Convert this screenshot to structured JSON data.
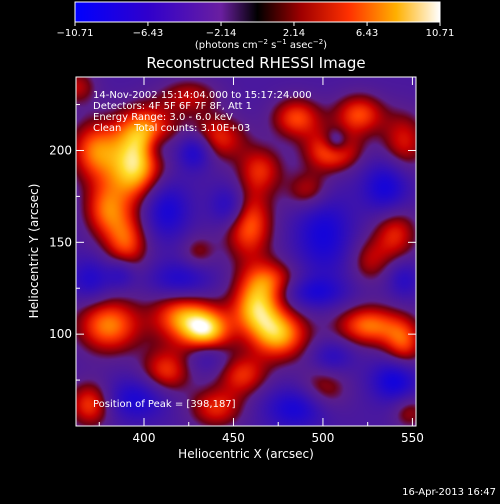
{
  "chart_data": {
    "type": "heatmap",
    "title": "Reconstructed RHESSI Image",
    "xlabel": "Heliocentric X (arcsec)",
    "ylabel": "Heliocentric Y (arcsec)",
    "xlim": [
      362,
      552
    ],
    "ylim": [
      50,
      240
    ],
    "x_ticks": [
      400,
      450,
      500,
      550
    ],
    "y_ticks": [
      100,
      150,
      200
    ],
    "colorbar": {
      "range": [
        -10.71,
        10.71
      ],
      "tick_values": [
        -10.71,
        -6.43,
        -2.14,
        2.14,
        6.43,
        10.71
      ],
      "tick_labels": [
        "−10.71",
        "−6.43",
        "−2.14",
        "2.14",
        "6.43",
        "10.71"
      ],
      "units_prefix": "(photons cm",
      "units_exp1": "−2",
      "units_mid": " s",
      "units_exp2": "−1",
      "units_mid2": " asec",
      "units_exp3": "−2",
      "units_suffix": ")"
    },
    "info_lines": [
      "14-Nov-2002 15:14:04.000 to 15:17:24.000",
      "Detectors: 4F 5F 6F 7F 8F, Att 1",
      "Energy Range: 3.0 - 6.0 keV",
      "Clean    Total counts: 3.10E+03"
    ],
    "peak_text": "Position of Peak = [398,187]",
    "peak": [
      398,
      187
    ],
    "blobs": [
      {
        "x": 395,
        "y": 190,
        "amp": 10.7,
        "sx": 11,
        "sy": 13
      },
      {
        "x": 372,
        "y": 200,
        "amp": 8.0,
        "sx": 10,
        "sy": 12
      },
      {
        "x": 400,
        "y": 212,
        "amp": 8.0,
        "sx": 12,
        "sy": 10
      },
      {
        "x": 440,
        "y": 207,
        "amp": 7.0,
        "sx": 12,
        "sy": 9
      },
      {
        "x": 465,
        "y": 190,
        "amp": 6.0,
        "sx": 9,
        "sy": 9
      },
      {
        "x": 378,
        "y": 168,
        "amp": 7.0,
        "sx": 9,
        "sy": 11
      },
      {
        "x": 390,
        "y": 150,
        "amp": 7.5,
        "sx": 9,
        "sy": 12
      },
      {
        "x": 458,
        "y": 160,
        "amp": 8.5,
        "sx": 10,
        "sy": 14
      },
      {
        "x": 505,
        "y": 200,
        "amp": 9.0,
        "sx": 11,
        "sy": 8
      },
      {
        "x": 485,
        "y": 218,
        "amp": 7.5,
        "sx": 10,
        "sy": 8
      },
      {
        "x": 520,
        "y": 220,
        "amp": 7.5,
        "sx": 10,
        "sy": 8
      },
      {
        "x": 545,
        "y": 205,
        "amp": 6.0,
        "sx": 9,
        "sy": 12
      },
      {
        "x": 492,
        "y": 178,
        "amp": 6.0,
        "sx": 9,
        "sy": 8
      },
      {
        "x": 470,
        "y": 130,
        "amp": 6.5,
        "sx": 12,
        "sy": 8
      },
      {
        "x": 540,
        "y": 155,
        "amp": 6.5,
        "sx": 9,
        "sy": 11
      },
      {
        "x": 525,
        "y": 140,
        "amp": 4.5,
        "sx": 8,
        "sy": 9
      },
      {
        "x": 380,
        "y": 105,
        "amp": 9.0,
        "sx": 13,
        "sy": 11
      },
      {
        "x": 420,
        "y": 110,
        "amp": 8.0,
        "sx": 12,
        "sy": 10
      },
      {
        "x": 435,
        "y": 102,
        "amp": 10.0,
        "sx": 10,
        "sy": 9
      },
      {
        "x": 475,
        "y": 100,
        "amp": 10.0,
        "sx": 12,
        "sy": 10
      },
      {
        "x": 462,
        "y": 115,
        "amp": 9.0,
        "sx": 10,
        "sy": 10
      },
      {
        "x": 525,
        "y": 105,
        "amp": 8.5,
        "sx": 13,
        "sy": 8
      },
      {
        "x": 545,
        "y": 95,
        "amp": 7.0,
        "sx": 8,
        "sy": 10
      },
      {
        "x": 412,
        "y": 80,
        "amp": 7.0,
        "sx": 10,
        "sy": 9
      },
      {
        "x": 455,
        "y": 78,
        "amp": 6.5,
        "sx": 10,
        "sy": 8
      },
      {
        "x": 370,
        "y": 62,
        "amp": 7.5,
        "sx": 9,
        "sy": 9
      },
      {
        "x": 440,
        "y": 60,
        "amp": 6.5,
        "sx": 11,
        "sy": 8
      },
      {
        "x": 500,
        "y": 70,
        "amp": 5.0,
        "sx": 10,
        "sy": 9
      },
      {
        "x": 548,
        "y": 58,
        "amp": 4.5,
        "sx": 7,
        "sy": 7
      },
      {
        "x": 425,
        "y": 230,
        "amp": 5.0,
        "sx": 12,
        "sy": 7
      },
      {
        "x": 362,
        "y": 235,
        "amp": 5.0,
        "sx": 8,
        "sy": 7
      },
      {
        "x": 430,
        "y": 145,
        "amp": 4.0,
        "sx": 7,
        "sy": 7
      },
      {
        "x": 408,
        "y": 202,
        "amp": -3.5,
        "sx": 6,
        "sy": 6
      },
      {
        "x": 387,
        "y": 133,
        "amp": -5.0,
        "sx": 6,
        "sy": 6
      },
      {
        "x": 428,
        "y": 200,
        "amp": -8.0,
        "sx": 7,
        "sy": 7
      },
      {
        "x": 412,
        "y": 168,
        "amp": -7.0,
        "sx": 9,
        "sy": 11
      },
      {
        "x": 447,
        "y": 170,
        "amp": -6.5,
        "sx": 7,
        "sy": 8
      },
      {
        "x": 500,
        "y": 155,
        "amp": -7.0,
        "sx": 11,
        "sy": 16
      },
      {
        "x": 507,
        "y": 205,
        "amp": -5.5,
        "sx": 5,
        "sy": 5
      },
      {
        "x": 535,
        "y": 180,
        "amp": -7.5,
        "sx": 9,
        "sy": 10
      },
      {
        "x": 420,
        "y": 130,
        "amp": -6.0,
        "sx": 12,
        "sy": 7
      },
      {
        "x": 370,
        "y": 130,
        "amp": -5.5,
        "sx": 8,
        "sy": 8
      },
      {
        "x": 495,
        "y": 123,
        "amp": -6.0,
        "sx": 12,
        "sy": 6
      },
      {
        "x": 395,
        "y": 65,
        "amp": -6.5,
        "sx": 12,
        "sy": 8
      },
      {
        "x": 485,
        "y": 60,
        "amp": -7.0,
        "sx": 12,
        "sy": 8
      },
      {
        "x": 540,
        "y": 75,
        "amp": -8.0,
        "sx": 9,
        "sy": 8
      },
      {
        "x": 435,
        "y": 88,
        "amp": -4.0,
        "sx": 8,
        "sy": 6
      },
      {
        "x": 505,
        "y": 88,
        "amp": -4.5,
        "sx": 8,
        "sy": 6
      },
      {
        "x": 545,
        "y": 130,
        "amp": -4.5,
        "sx": 6,
        "sy": 7
      }
    ]
  },
  "footer": {
    "date": "16-Apr-2013 16:47"
  }
}
